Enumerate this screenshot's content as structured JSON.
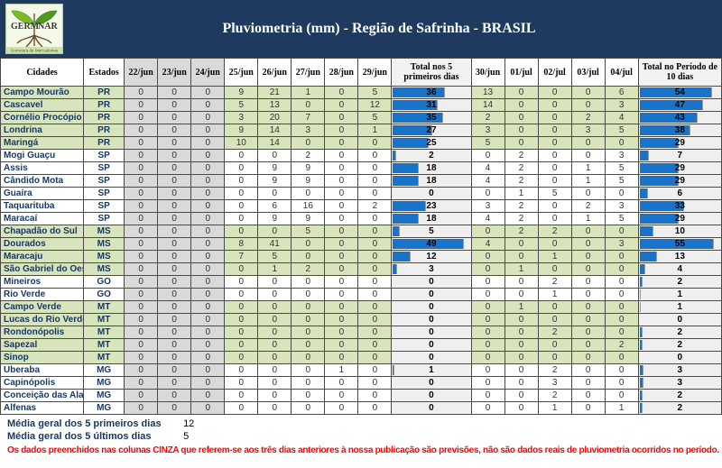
{
  "header": {
    "logo_name": "GERMINAR",
    "logo_left": "GERM",
    "logo_right": "NAR",
    "logo_sub": "Corretora de Mercadorias",
    "title": "Pluviometria (mm) - Região de Safrinha - BRASIL"
  },
  "colors": {
    "banner_navy": "#1E3A5F",
    "row_green": "#D8E4BC",
    "gray_column": "#D9D9D9",
    "total_cell_bg": "#EFEFEF",
    "data_bar_blue": "#1973C8",
    "note_red": "#FF0000"
  },
  "table": {
    "columns": {
      "city": "Cidades",
      "state": "Estados",
      "days_prev": [
        "22/jun",
        "23/jun",
        "24/jun"
      ],
      "days_first5": [
        "25/jun",
        "26/jun",
        "27/jun",
        "28/jun",
        "29/jun"
      ],
      "total5": "Total nos 5 primeiros dias",
      "days_last5": [
        "30/jun",
        "01/jul",
        "02/jul",
        "03/jul",
        "04/jul"
      ],
      "total10": "Total no Período de 10 dias"
    },
    "green_states": [
      "PR",
      "MS",
      "MT"
    ],
    "bar_scale": {
      "total5_max": 49,
      "total10_max": 55,
      "fill_pct": 90
    },
    "rows": [
      {
        "city": "Campo Mourão",
        "state": "PR",
        "values": [
          0,
          0,
          0,
          9,
          21,
          1,
          0,
          5
        ],
        "total5": 36,
        "values2": [
          13,
          0,
          0,
          0,
          6
        ],
        "total10": 54
      },
      {
        "city": "Cascavel",
        "state": "PR",
        "values": [
          0,
          0,
          0,
          5,
          13,
          0,
          0,
          12
        ],
        "total5": 31,
        "values2": [
          14,
          0,
          0,
          0,
          3
        ],
        "total10": 47
      },
      {
        "city": "Cornélio Procópio",
        "state": "PR",
        "values": [
          0,
          0,
          0,
          3,
          20,
          7,
          0,
          5
        ],
        "total5": 35,
        "values2": [
          2,
          0,
          0,
          2,
          4
        ],
        "total10": 43
      },
      {
        "city": "Londrina",
        "state": "PR",
        "values": [
          0,
          0,
          0,
          9,
          14,
          3,
          0,
          1
        ],
        "total5": 27,
        "values2": [
          3,
          0,
          0,
          3,
          5
        ],
        "total10": 38
      },
      {
        "city": "Maringá",
        "state": "PR",
        "values": [
          0,
          0,
          0,
          10,
          14,
          0,
          0,
          0
        ],
        "total5": 25,
        "values2": [
          5,
          0,
          0,
          0,
          0
        ],
        "total10": 29
      },
      {
        "city": "Mogi Guaçu",
        "state": "SP",
        "values": [
          0,
          0,
          0,
          0,
          0,
          2,
          0,
          0
        ],
        "total5": 2,
        "values2": [
          0,
          2,
          0,
          0,
          3
        ],
        "total10": 7
      },
      {
        "city": "Assis",
        "state": "SP",
        "values": [
          0,
          0,
          0,
          0,
          9,
          9,
          0,
          0
        ],
        "total5": 18,
        "values2": [
          4,
          2,
          0,
          1,
          5
        ],
        "total10": 29
      },
      {
        "city": "Cândido Mota",
        "state": "SP",
        "values": [
          0,
          0,
          0,
          0,
          9,
          9,
          0,
          0
        ],
        "total5": 18,
        "values2": [
          4,
          2,
          0,
          1,
          5
        ],
        "total10": 29
      },
      {
        "city": "Guaíra",
        "state": "SP",
        "values": [
          0,
          0,
          0,
          0,
          0,
          0,
          0,
          0
        ],
        "total5": 0,
        "values2": [
          0,
          1,
          5,
          0,
          0
        ],
        "total10": 6
      },
      {
        "city": "Taquarituba",
        "state": "SP",
        "values": [
          0,
          0,
          0,
          0,
          6,
          16,
          0,
          2
        ],
        "total5": 23,
        "values2": [
          3,
          2,
          0,
          2,
          3
        ],
        "total10": 33
      },
      {
        "city": "Maracaí",
        "state": "SP",
        "values": [
          0,
          0,
          0,
          0,
          9,
          9,
          0,
          0
        ],
        "total5": 18,
        "values2": [
          4,
          2,
          0,
          1,
          5
        ],
        "total10": 29
      },
      {
        "city": "Chapadão do Sul",
        "state": "MS",
        "values": [
          0,
          0,
          0,
          0,
          0,
          5,
          0,
          0
        ],
        "total5": 5,
        "values2": [
          0,
          2,
          2,
          0,
          0
        ],
        "total10": 10
      },
      {
        "city": "Dourados",
        "state": "MS",
        "values": [
          0,
          0,
          0,
          8,
          41,
          0,
          0,
          0
        ],
        "total5": 49,
        "values2": [
          4,
          0,
          0,
          0,
          3
        ],
        "total10": 55
      },
      {
        "city": "Maracaju",
        "state": "MS",
        "values": [
          0,
          0,
          0,
          7,
          5,
          0,
          0,
          0
        ],
        "total5": 12,
        "values2": [
          0,
          0,
          1,
          0,
          0
        ],
        "total10": 13
      },
      {
        "city": "São Gabriel do Oeste",
        "state": "MS",
        "values": [
          0,
          0,
          0,
          0,
          1,
          2,
          0,
          0
        ],
        "total5": 3,
        "values2": [
          0,
          1,
          0,
          0,
          0
        ],
        "total10": 4
      },
      {
        "city": "Mineiros",
        "state": "GO",
        "values": [
          0,
          0,
          0,
          0,
          0,
          0,
          0,
          0
        ],
        "total5": 0,
        "values2": [
          0,
          0,
          2,
          0,
          0
        ],
        "total10": 2
      },
      {
        "city": "Rio Verde",
        "state": "GO",
        "values": [
          0,
          0,
          0,
          0,
          0,
          0,
          0,
          0
        ],
        "total5": 0,
        "values2": [
          0,
          0,
          1,
          0,
          0
        ],
        "total10": 1
      },
      {
        "city": "Campo Verde",
        "state": "MT",
        "values": [
          0,
          0,
          0,
          0,
          0,
          0,
          0,
          0
        ],
        "total5": 0,
        "values2": [
          0,
          1,
          0,
          0,
          0
        ],
        "total10": 1
      },
      {
        "city": "Lucas do Rio Verde",
        "state": "MT",
        "values": [
          0,
          0,
          0,
          0,
          0,
          0,
          0,
          0
        ],
        "total5": 0,
        "values2": [
          0,
          0,
          0,
          0,
          0
        ],
        "total10": 0
      },
      {
        "city": "Rondonópolis",
        "state": "MT",
        "values": [
          0,
          0,
          0,
          0,
          0,
          0,
          0,
          0
        ],
        "total5": 0,
        "values2": [
          0,
          0,
          2,
          0,
          0
        ],
        "total10": 2
      },
      {
        "city": "Sapezal",
        "state": "MT",
        "values": [
          0,
          0,
          0,
          0,
          0,
          0,
          0,
          0
        ],
        "total5": 0,
        "values2": [
          0,
          0,
          0,
          0,
          2
        ],
        "total10": 2
      },
      {
        "city": "Sinop",
        "state": "MT",
        "values": [
          0,
          0,
          0,
          0,
          0,
          0,
          0,
          0
        ],
        "total5": 0,
        "values2": [
          0,
          0,
          0,
          0,
          0
        ],
        "total10": 0
      },
      {
        "city": "Uberaba",
        "state": "MG",
        "values": [
          0,
          0,
          0,
          0,
          0,
          0,
          1,
          0
        ],
        "total5": 1,
        "values2": [
          0,
          0,
          2,
          0,
          0
        ],
        "total10": 3
      },
      {
        "city": "Capinópolis",
        "state": "MG",
        "values": [
          0,
          0,
          0,
          0,
          0,
          0,
          0,
          0
        ],
        "total5": 0,
        "values2": [
          0,
          0,
          3,
          0,
          0
        ],
        "total10": 3
      },
      {
        "city": "Conceição das Alagoas",
        "state": "MG",
        "values": [
          0,
          0,
          0,
          0,
          0,
          0,
          0,
          0
        ],
        "total5": 0,
        "values2": [
          0,
          0,
          2,
          0,
          0
        ],
        "total10": 2
      },
      {
        "city": "Alfenas",
        "state": "MG",
        "values": [
          0,
          0,
          0,
          0,
          0,
          0,
          0,
          0
        ],
        "total5": 0,
        "values2": [
          0,
          0,
          1,
          0,
          1
        ],
        "total10": 2
      }
    ]
  },
  "footer": {
    "avg5_label": "Média geral dos 5 primeiros dias",
    "avg5_value": "12",
    "avg_last5_label": "Média geral dos 5 últimos dias",
    "avg_last5_value": "5",
    "note": "Os dados preenchidos nas colunas CINZA que referem-se aos três dias anteriores à nossa publicação são previsões, não são dados reais de pluviometria ocorridos no período."
  }
}
